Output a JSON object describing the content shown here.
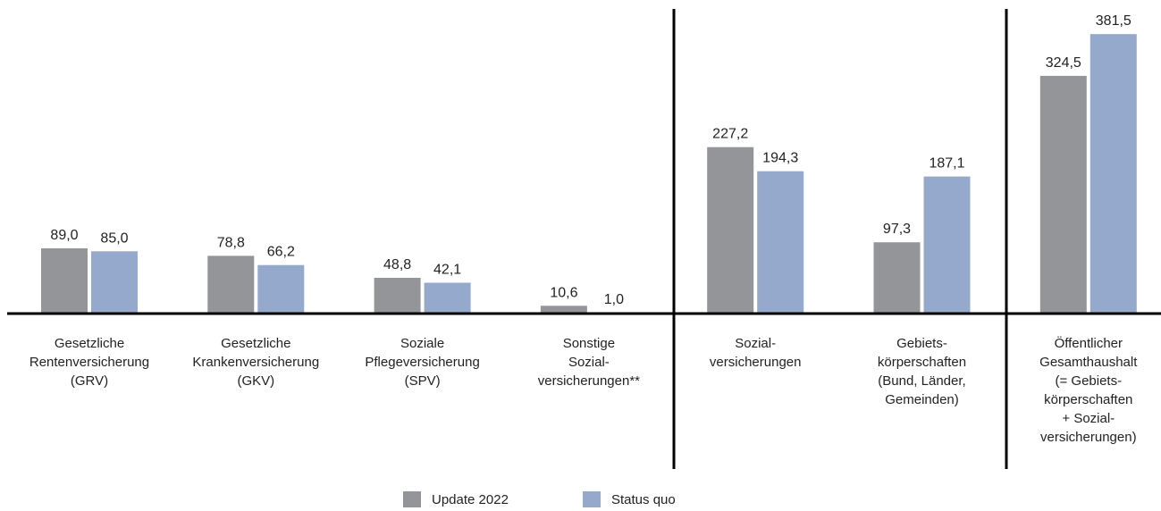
{
  "chart_data": {
    "type": "bar",
    "categories": [
      "Gesetzliche\nRentenversicherung\n(GRV)",
      "Gesetzliche\nKrankenversicherung\n(GKV)",
      "Soziale\nPflegeversicherung\n(SPV)",
      "Sonstige\nSozial-\nversicherungen**",
      "Sozial-\nversicherungen",
      "Gebiets-\nkörperschaften\n(Bund, Länder,\nGemeinden)",
      "Öffentlicher\nGesamthaushalt\n(= Gebiets-\nkörperschaften\n+ Sozial-\nversicherungen)"
    ],
    "series": [
      {
        "name": "Update 2022",
        "color": "#939598",
        "values": [
          89.0,
          78.8,
          48.8,
          10.6,
          227.2,
          97.3,
          324.5
        ],
        "value_labels": [
          "89,0",
          "78,8",
          "48,8",
          "10,6",
          "227,2",
          "97,3",
          "324,5"
        ]
      },
      {
        "name": "Status quo",
        "color": "#95a9cc",
        "values": [
          85.0,
          66.2,
          42.1,
          1.0,
          194.3,
          187.1,
          381.5
        ],
        "value_labels": [
          "85,0",
          "66,2",
          "42,1",
          "1,0",
          "194,3",
          "187,1",
          "381,5"
        ]
      }
    ],
    "ylim": [
      0,
      400
    ]
  }
}
